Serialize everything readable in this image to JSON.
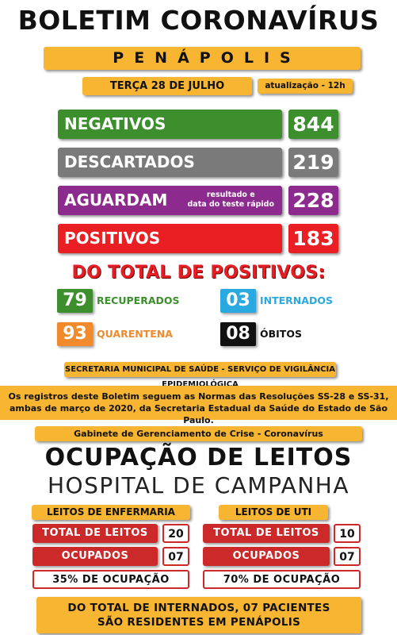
{
  "header": {
    "title": "BOLETIM CORONAVÍRUS",
    "city": "PENÁPOLIS",
    "date": "TERÇA 28 DE JULHO",
    "update": "atualização - 12h"
  },
  "stats": {
    "negativos": {
      "label": "NEGATIVOS",
      "value": "844",
      "color": "#3c8f2c"
    },
    "descartados": {
      "label": "DESCARTADOS",
      "value": "219",
      "color": "#7a7a7a"
    },
    "aguardam": {
      "label": "AGUARDAM",
      "note_line1": "resultado e",
      "note_line2": "data do teste rápido",
      "value": "228",
      "color": "#8c2a8e"
    },
    "positivos": {
      "label": "POSITIVOS",
      "value": "183",
      "color": "#ea1f23"
    }
  },
  "positives": {
    "heading": "DO TOTAL DE POSITIVOS:",
    "recuperados": {
      "value": "79",
      "label": "RECUPERADOS",
      "color": "#3c8f2c"
    },
    "internados": {
      "value": "03",
      "label": "INTERNADOS",
      "color": "#2aa8e0"
    },
    "quarentena": {
      "value": "93",
      "label": "QUARENTENA",
      "color": "#f08a2c"
    },
    "obitos": {
      "value": "08",
      "label": "ÓBITOS",
      "color": "#111111"
    }
  },
  "info": {
    "secretaria": "SECRETARIA MUNICIPAL DE SAÚDE - SERVIÇO DE VIGILÂNCIA EPIDEMIOLÓGICA",
    "normas_line1": "Os registros deste Boletim seguem as Normas das Resoluções SS-28 e SS-31,",
    "normas_line2": "ambas de março de 2020, da Secretaria Estadual da Saúde do Estado de São Paulo.",
    "gabinete": "Gabinete de Gerenciamento de Crise - Coronavírus"
  },
  "beds": {
    "title": "OCUPAÇÃO DE LEITOS",
    "subtitle": "HOSPITAL DE CAMPANHA",
    "enfermaria": {
      "header": "LEITOS DE ENFERMARIA",
      "total_label": "TOTAL DE LEITOS",
      "total_value": "20",
      "ocupados_label": "OCUPADOS",
      "ocupados_value": "07",
      "ocupacao": "35% DE OCUPAÇÃO"
    },
    "uti": {
      "header": "LEITOS DE UTI",
      "total_label": "TOTAL DE LEITOS",
      "total_value": "10",
      "ocupados_label": "OCUPADOS",
      "ocupados_value": "07",
      "ocupacao": "70% DE OCUPAÇÃO"
    }
  },
  "footer": {
    "line1": "DO TOTAL DE INTERNADOS, 07 PACIENTES",
    "line2": "SÃO RESIDENTES EM PENÁPOLIS"
  },
  "colors": {
    "accent_orange": "#f7b531",
    "bed_red": "#cc2a2a"
  }
}
